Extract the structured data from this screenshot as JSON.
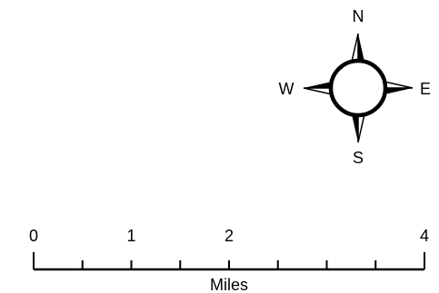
{
  "north_arrow": {
    "north": "N",
    "south": "S",
    "east": "E",
    "west": "W"
  },
  "scale_bar": {
    "unit": "Miles",
    "labels": [
      "0",
      "1",
      "2",
      "4"
    ],
    "label_values": [
      0,
      1,
      2,
      4
    ],
    "max_value": 4,
    "minor_interval": 0.5
  },
  "colors": {
    "ink": "#000000",
    "background": "#ffffff"
  }
}
